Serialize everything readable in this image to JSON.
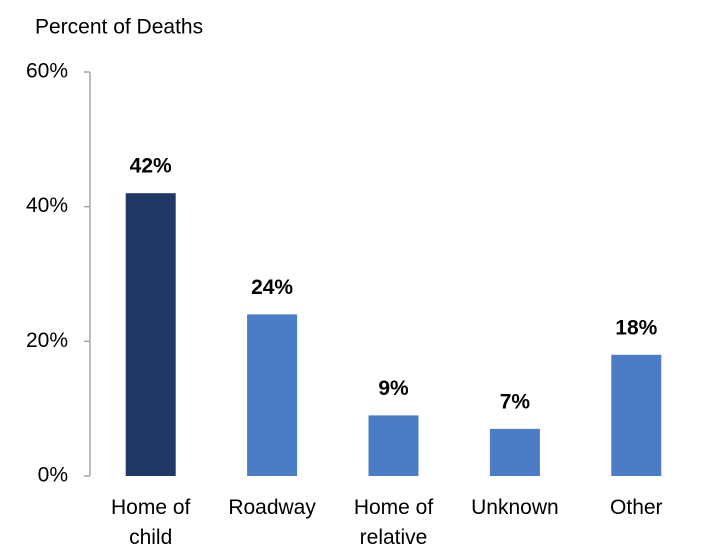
{
  "chart_data": {
    "type": "bar",
    "y_axis_label": "Percent of Deaths",
    "categories": [
      "Home of child",
      "Roadway",
      "Home of relative",
      "Unknown",
      "Other"
    ],
    "values": [
      42,
      24,
      9,
      7,
      18
    ],
    "value_labels": [
      "42%",
      "24%",
      "9%",
      "7%",
      "18%"
    ],
    "colors": [
      "#1f3864",
      "#4a7cc7",
      "#4a7cc7",
      "#4a7cc7",
      "#4a7cc7"
    ],
    "ylim": [
      0,
      60
    ],
    "yticks": [
      {
        "value": 0,
        "label": "0%"
      },
      {
        "value": 20,
        "label": "20%"
      },
      {
        "value": 40,
        "label": "40%"
      },
      {
        "value": 60,
        "label": "60%"
      }
    ],
    "grid": false
  }
}
